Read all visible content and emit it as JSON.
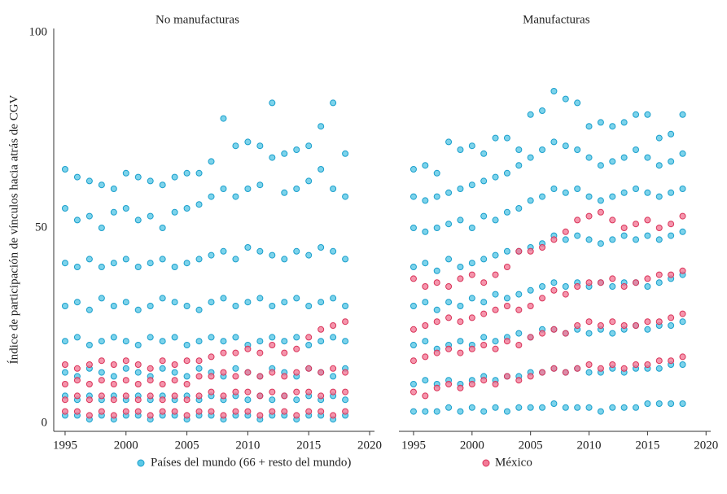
{
  "y_label": "Índice de participación de vínculos hacia atrás de CGV",
  "legend": [
    "Países del mundo (66 + resto del mundo)",
    "México"
  ],
  "chart_data": [
    {
      "type": "scatter",
      "title": "No manufacturas",
      "x": [
        1995,
        1996,
        1997,
        1998,
        1999,
        2000,
        2001,
        2002,
        2003,
        2004,
        2005,
        2006,
        2007,
        2008,
        2009,
        2010,
        2011,
        2012,
        2013,
        2014,
        2015,
        2016,
        2017,
        2018
      ],
      "xlim": [
        1994,
        2020.4
      ],
      "xticks": [
        1995,
        2000,
        2005,
        2010,
        2015,
        2020
      ],
      "ylim": [
        0,
        100
      ],
      "yticks": [
        0,
        50,
        100
      ],
      "series": [
        {
          "name": "Países del mundo (66 + resto del mundo)",
          "color": "#5bc8e6",
          "values": [
            [
              2,
              7,
              13,
              21,
              30,
              41,
              55,
              65
            ],
            [
              2,
              6,
              12,
              22,
              31,
              40,
              52,
              63
            ],
            [
              1,
              7,
              14,
              20,
              29,
              42,
              53,
              62
            ],
            [
              2,
              6,
              13,
              21,
              32,
              40,
              50,
              61
            ],
            [
              1,
              7,
              12,
              22,
              30,
              41,
              54,
              60
            ],
            [
              2,
              6,
              14,
              21,
              31,
              42,
              55,
              64
            ],
            [
              2,
              7,
              13,
              20,
              29,
              40,
              52,
              63
            ],
            [
              1,
              6,
              12,
              22,
              30,
              41,
              53,
              62
            ],
            [
              2,
              7,
              14,
              21,
              32,
              42,
              50,
              61
            ],
            [
              2,
              6,
              13,
              22,
              31,
              40,
              54,
              63
            ],
            [
              1,
              7,
              12,
              20,
              30,
              41,
              55,
              64
            ],
            [
              2,
              6,
              14,
              21,
              29,
              42,
              56,
              64
            ],
            [
              2,
              7,
              13,
              22,
              31,
              43,
              58,
              67
            ],
            [
              1,
              6,
              12,
              21,
              32,
              44,
              60,
              78
            ],
            [
              2,
              7,
              14,
              22,
              30,
              42,
              58,
              71
            ],
            [
              2,
              6,
              13,
              20,
              31,
              45,
              60,
              72
            ],
            [
              1,
              7,
              12,
              21,
              32,
              44,
              61,
              71
            ],
            [
              2,
              6,
              14,
              22,
              30,
              43,
              68,
              82
            ],
            [
              2,
              7,
              13,
              21,
              31,
              42,
              59,
              69
            ],
            [
              1,
              6,
              12,
              22,
              32,
              44,
              60,
              70
            ],
            [
              2,
              7,
              14,
              20,
              30,
              43,
              62,
              71
            ],
            [
              2,
              6,
              13,
              21,
              31,
              45,
              65,
              76
            ],
            [
              1,
              7,
              12,
              22,
              32,
              44,
              60,
              82
            ],
            [
              2,
              6,
              14,
              21,
              30,
              42,
              58,
              69
            ]
          ]
        },
        {
          "name": "México",
          "color": "#f27a97",
          "values": [
            [
              3,
              6,
              10,
              15
            ],
            [
              3,
              7,
              11,
              14
            ],
            [
              2,
              6,
              10,
              15
            ],
            [
              3,
              7,
              11,
              16
            ],
            [
              2,
              6,
              10,
              15
            ],
            [
              3,
              7,
              11,
              16
            ],
            [
              3,
              6,
              10,
              15
            ],
            [
              2,
              7,
              11,
              14
            ],
            [
              3,
              6,
              10,
              16
            ],
            [
              3,
              7,
              11,
              15
            ],
            [
              2,
              6,
              10,
              16
            ],
            [
              3,
              7,
              12,
              16
            ],
            [
              3,
              8,
              12,
              17
            ],
            [
              2,
              7,
              13,
              18
            ],
            [
              3,
              8,
              12,
              18
            ],
            [
              3,
              8,
              13,
              19
            ],
            [
              2,
              7,
              12,
              18
            ],
            [
              3,
              8,
              13,
              20
            ],
            [
              3,
              7,
              12,
              18
            ],
            [
              2,
              8,
              13,
              19
            ],
            [
              3,
              8,
              14,
              22
            ],
            [
              3,
              7,
              13,
              24
            ],
            [
              2,
              8,
              14,
              25
            ],
            [
              3,
              8,
              13,
              26
            ]
          ]
        }
      ]
    },
    {
      "type": "scatter",
      "title": "Manufacturas",
      "x": [
        1995,
        1996,
        1997,
        1998,
        1999,
        2000,
        2001,
        2002,
        2003,
        2004,
        2005,
        2006,
        2007,
        2008,
        2009,
        2010,
        2011,
        2012,
        2013,
        2014,
        2015,
        2016,
        2017,
        2018
      ],
      "xlim": [
        1994,
        2020.4
      ],
      "xticks": [
        1995,
        2000,
        2005,
        2010,
        2015,
        2020
      ],
      "ylim": [
        0,
        100
      ],
      "yticks": [
        0,
        50,
        100
      ],
      "series": [
        {
          "name": "Países del mundo (66 + resto del mundo)",
          "color": "#5bc8e6",
          "values": [
            [
              3,
              10,
              20,
              30,
              40,
              50,
              58,
              65
            ],
            [
              3,
              11,
              21,
              31,
              41,
              49,
              57,
              66
            ],
            [
              3,
              10,
              19,
              29,
              39,
              50,
              58,
              64
            ],
            [
              4,
              11,
              20,
              31,
              42,
              51,
              59,
              72
            ],
            [
              3,
              10,
              21,
              30,
              40,
              52,
              60,
              70
            ],
            [
              4,
              11,
              20,
              32,
              41,
              50,
              61,
              71
            ],
            [
              3,
              12,
              22,
              31,
              42,
              53,
              62,
              69
            ],
            [
              4,
              11,
              21,
              33,
              43,
              52,
              63,
              73
            ],
            [
              3,
              12,
              22,
              32,
              44,
              54,
              64,
              73
            ],
            [
              4,
              12,
              23,
              33,
              44,
              55,
              66,
              70
            ],
            [
              4,
              13,
              22,
              34,
              45,
              57,
              68,
              79
            ],
            [
              4,
              13,
              24,
              35,
              46,
              58,
              70,
              80
            ],
            [
              5,
              14,
              24,
              36,
              48,
              60,
              72,
              85
            ],
            [
              4,
              13,
              23,
              35,
              47,
              59,
              71,
              83
            ],
            [
              4,
              14,
              24,
              36,
              48,
              60,
              70,
              82
            ],
            [
              4,
              13,
              23,
              35,
              47,
              58,
              68,
              76
            ],
            [
              3,
              13,
              24,
              36,
              46,
              57,
              66,
              77
            ],
            [
              4,
              14,
              23,
              35,
              47,
              58,
              67,
              76
            ],
            [
              4,
              13,
              24,
              36,
              48,
              59,
              68,
              77
            ],
            [
              4,
              14,
              25,
              36,
              47,
              60,
              70,
              79
            ],
            [
              5,
              14,
              24,
              35,
              48,
              59,
              68,
              79
            ],
            [
              5,
              14,
              25,
              36,
              47,
              58,
              66,
              73
            ],
            [
              5,
              15,
              25,
              37,
              48,
              59,
              67,
              74
            ],
            [
              5,
              15,
              26,
              38,
              49,
              60,
              69,
              79
            ]
          ]
        },
        {
          "name": "México",
          "color": "#f27a97",
          "values": [
            [
              8,
              16,
              24,
              37
            ],
            [
              7,
              17,
              25,
              35
            ],
            [
              9,
              18,
              26,
              36
            ],
            [
              10,
              19,
              27,
              35
            ],
            [
              9,
              18,
              26,
              37
            ],
            [
              10,
              19,
              27,
              38
            ],
            [
              11,
              20,
              28,
              36
            ],
            [
              10,
              19,
              29,
              38
            ],
            [
              12,
              21,
              30,
              40
            ],
            [
              11,
              20,
              29,
              44
            ],
            [
              12,
              22,
              30,
              44
            ],
            [
              13,
              23,
              32,
              45
            ],
            [
              14,
              24,
              34,
              47
            ],
            [
              13,
              23,
              33,
              49
            ],
            [
              14,
              25,
              35,
              52
            ],
            [
              15,
              26,
              36,
              53
            ],
            [
              14,
              25,
              36,
              54
            ],
            [
              15,
              26,
              37,
              52
            ],
            [
              14,
              25,
              35,
              50
            ],
            [
              15,
              25,
              36,
              51
            ],
            [
              15,
              26,
              37,
              52
            ],
            [
              16,
              26,
              38,
              50
            ],
            [
              16,
              27,
              38,
              51
            ],
            [
              17,
              28,
              39,
              53
            ]
          ]
        }
      ]
    }
  ]
}
